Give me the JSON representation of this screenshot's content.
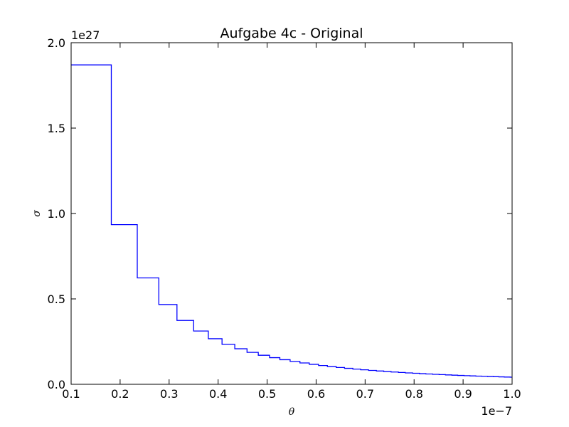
{
  "chart_data": {
    "type": "line",
    "drawstyle": "steps-post",
    "title": "Aufgabe 4c - Original",
    "xlabel": "θ",
    "ylabel": "σ",
    "x_offset_text": "1e−7",
    "y_offset_text": "1e27",
    "xlim": [
      1e-08,
      1e-07
    ],
    "ylim": [
      0,
      2e+27
    ],
    "grid": false,
    "x_ticks": [
      1e-08,
      2e-08,
      3e-08,
      4e-08,
      5e-08,
      6e-08,
      7e-08,
      8e-08,
      9e-08,
      1e-07
    ],
    "x_tick_labels": [
      "0.1",
      "0.2",
      "0.3",
      "0.4",
      "0.5",
      "0.6",
      "0.7",
      "0.8",
      "0.9",
      "1.0"
    ],
    "y_ticks": [
      0,
      5e+26,
      1e+27,
      1.5e+27,
      2e+27
    ],
    "y_tick_labels": [
      "0.0",
      "0.5",
      "1.0",
      "1.5",
      "2.0"
    ],
    "series": [
      {
        "color": "#0000ff",
        "x": [
          1e-08,
          1.82e-08,
          2.35e-08,
          2.79e-08,
          3.16e-08,
          3.5e-08,
          3.8e-08,
          4.08e-08,
          4.34e-08,
          4.59e-08,
          4.82e-08,
          5.05e-08,
          5.26e-08,
          5.47e-08,
          5.67e-08,
          5.86e-08,
          6.05e-08,
          6.23e-08,
          6.41e-08,
          6.58e-08,
          6.75e-08,
          6.91e-08,
          7.07e-08,
          7.23e-08,
          7.38e-08,
          7.53e-08,
          7.68e-08,
          7.82e-08,
          7.97e-08,
          8.11e-08,
          8.24e-08,
          8.38e-08,
          8.51e-08,
          8.64e-08,
          8.77e-08,
          8.89e-08,
          9.02e-08,
          9.14e-08,
          9.26e-08,
          9.38e-08,
          9.5e-08,
          9.62e-08,
          9.73e-08,
          9.84e-08,
          9.96e-08,
          1e-07
        ],
        "y": [
          1.87e+27,
          9.35e+26,
          6.23e+26,
          4.67e+26,
          3.74e+26,
          3.12e+26,
          2.67e+26,
          2.34e+26,
          2.08e+26,
          1.87e+26,
          1.7e+26,
          1.56e+26,
          1.44e+26,
          1.34e+26,
          1.25e+26,
          1.17e+26,
          1.1e+26,
          1.04e+26,
          9.84e+25,
          9.35e+25,
          8.9e+25,
          8.5e+25,
          8.13e+25,
          7.79e+25,
          7.48e+25,
          7.19e+25,
          6.93e+25,
          6.68e+25,
          6.45e+25,
          6.23e+25,
          6.03e+25,
          5.84e+25,
          5.67e+25,
          5.5e+25,
          5.34e+25,
          5.19e+25,
          5.05e+25,
          4.92e+25,
          4.79e+25,
          4.68e+25,
          4.56e+25,
          4.45e+25,
          4.35e+25,
          4.25e+25,
          4.16e+25,
          4.16e+25
        ]
      }
    ]
  }
}
